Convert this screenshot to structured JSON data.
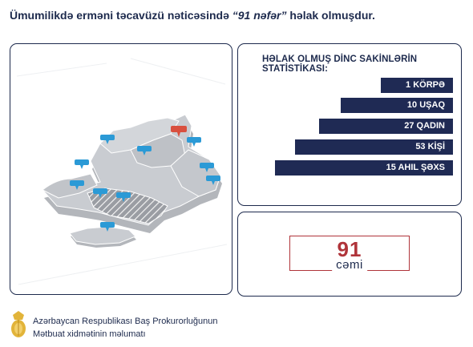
{
  "headline": {
    "prefix": "Ümumilikdə erməni təcavüzü nəticəsində ",
    "highlight": "“91 nəfər”",
    "suffix": " həlak olmuşdur."
  },
  "stats": {
    "title": "HƏLAK OLMUŞ DİNC SAKİNLƏRİN STATİSTİKASI:",
    "items": [
      {
        "label": "1 KÖRPƏ",
        "value": 1
      },
      {
        "label": "10 UŞAQ",
        "value": 10
      },
      {
        "label": "27 QADIN",
        "value": 27
      },
      {
        "label": "53 KİŞİ",
        "value": 53
      },
      {
        "label": "15 AHIL ŞƏXS",
        "value": 15
      }
    ],
    "bar_color": "#1f2a54"
  },
  "total": {
    "number": "91",
    "word": "cəmi",
    "accent_color": "#b0343a"
  },
  "map": {
    "region_color": "#c9ccd1",
    "pin_color": "#2b9ad6",
    "highlight_pin_color": "#d9503f"
  },
  "footer": {
    "line1": "Azərbaycan Respublikası Baş Prokurorluğunun",
    "line2": "Mətbuat xidmətinin məlumatı",
    "emblem_icon": "prosecutor-emblem-icon"
  }
}
